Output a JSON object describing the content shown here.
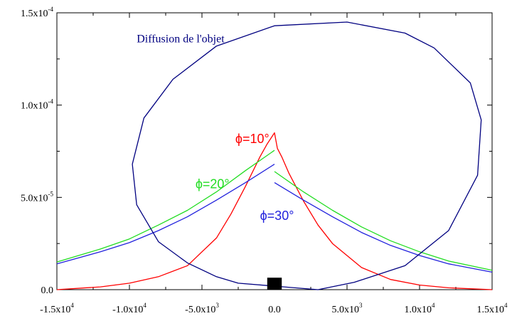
{
  "chart_data": {
    "type": "line",
    "title": "",
    "xlabel": "",
    "ylabel": "",
    "xlim": [
      -15000,
      15000
    ],
    "ylim": [
      0,
      0.00015
    ],
    "grid": false,
    "x_ticks": [
      {
        "value": -15000,
        "mantissa": "-1.5x10",
        "exp": "4"
      },
      {
        "value": -10000,
        "mantissa": "-1.0x10",
        "exp": "4"
      },
      {
        "value": -5000,
        "mantissa": "-5.0x10",
        "exp": "3"
      },
      {
        "value": 0,
        "mantissa": "0.0",
        "exp": ""
      },
      {
        "value": 5000,
        "mantissa": "5.0x10",
        "exp": "3"
      },
      {
        "value": 10000,
        "mantissa": "1.0x10",
        "exp": "4"
      },
      {
        "value": 15000,
        "mantissa": "1.5x10",
        "exp": "4"
      }
    ],
    "y_ticks": [
      {
        "value": 0,
        "mantissa": "0.0",
        "exp": ""
      },
      {
        "value": 5e-05,
        "mantissa": "5.0x10",
        "exp": "-5"
      },
      {
        "value": 0.0001,
        "mantissa": "1.0x10",
        "exp": "-4"
      },
      {
        "value": 0.00015,
        "mantissa": "1.5x10",
        "exp": "-4"
      }
    ],
    "annotations": [
      {
        "text": "Diffusion de l'objet",
        "x": -9500,
        "y": 0.000134,
        "color": "#000080",
        "style": "serif"
      },
      {
        "text": "ϕ=10°",
        "x": -2700,
        "y": 7.95e-05,
        "color": "#ff0000",
        "style": "sans"
      },
      {
        "text": "ϕ=20°",
        "x": -5450,
        "y": 5.49e-05,
        "color": "#22dd22",
        "style": "sans"
      },
      {
        "text": "ϕ=30°",
        "x": -1000,
        "y": 3.78e-05,
        "color": "#2222dd",
        "style": "sans"
      }
    ],
    "object_marker": {
      "x_min": -500,
      "x_max": 500,
      "y_min": 0,
      "y_max": 6.5e-06,
      "color": "#000000"
    },
    "series": [
      {
        "color": "#ff0000",
        "x": [
          -15000,
          -12000,
          -10000,
          -8000,
          -6000,
          -4000,
          -3000,
          -2000,
          -1000,
          -500,
          0,
          200,
          500,
          1000,
          2000,
          3000,
          4000,
          6000,
          8000,
          10000,
          12000,
          15000
        ],
        "y": [
          0,
          1.5e-06,
          3.5e-06,
          7e-06,
          1.3e-05,
          2.8e-05,
          4.1e-05,
          5.6e-05,
          7.2e-05,
          7.9e-05,
          8.5e-05,
          7.65e-05,
          7.2e-05,
          6.3e-05,
          4.8e-05,
          3.5e-05,
          2.5e-05,
          1.2e-05,
          5.5e-06,
          2.5e-06,
          1e-06,
          0
        ]
      },
      {
        "color": "#22dd22",
        "x": [
          -15000,
          -12000,
          -10000,
          -8000,
          -6000,
          -4000,
          -2000,
          0,
          null,
          0,
          2000,
          4000,
          6000,
          8000,
          10000,
          12000,
          15000
        ],
        "y": [
          1.5e-05,
          2.2e-05,
          2.75e-05,
          3.5e-05,
          4.3e-05,
          5.3e-05,
          6.45e-05,
          7.55e-05,
          null,
          6.4e-05,
          5.3e-05,
          4.3e-05,
          3.4e-05,
          2.65e-05,
          2.05e-05,
          1.55e-05,
          1.05e-05
        ]
      },
      {
        "color": "#2222dd",
        "x": [
          -15000,
          -12000,
          -10000,
          -8000,
          -6000,
          -4000,
          -2000,
          0,
          null,
          0,
          2000,
          4000,
          6000,
          8000,
          10000,
          12000,
          15000
        ],
        "y": [
          1.4e-05,
          2.05e-05,
          2.55e-05,
          3.2e-05,
          3.95e-05,
          4.85e-05,
          5.8e-05,
          6.8e-05,
          null,
          5.8e-05,
          4.85e-05,
          3.95e-05,
          3.1e-05,
          2.4e-05,
          1.85e-05,
          1.4e-05,
          9.5e-06
        ]
      },
      {
        "color": "#000080",
        "closed": true,
        "x": [
          -2500,
          3000,
          5500,
          9000,
          12000,
          14000,
          14250,
          13500,
          11000,
          9000,
          5000,
          0,
          -4000,
          -7000,
          -9000,
          -9800,
          -9500,
          -8000,
          -6000,
          -4000,
          -2500
        ],
        "y": [
          3.5e-06,
          0,
          4e-06,
          1.3e-05,
          3.2e-05,
          6.2e-05,
          9.2e-05,
          0.000112,
          0.000131,
          0.000139,
          0.000145,
          0.000143,
          0.000132,
          0.000114,
          9.3e-05,
          6.8e-05,
          4.6e-05,
          2.6e-05,
          1.45e-05,
          7e-06,
          3.5e-06
        ]
      }
    ]
  }
}
